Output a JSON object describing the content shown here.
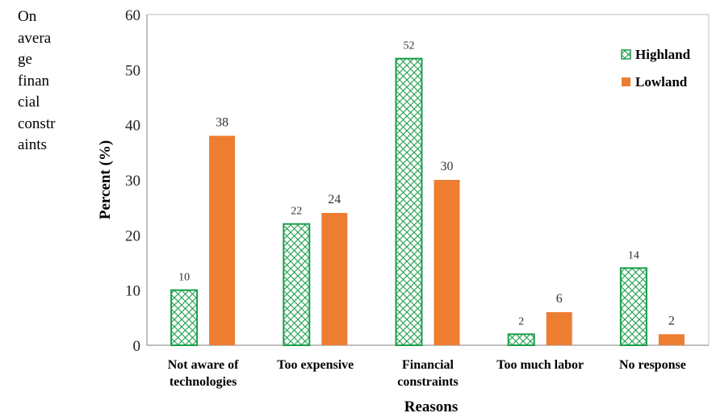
{
  "side_text": [
    "On",
    "avera",
    "ge",
    "finan",
    "cial",
    "constr",
    "aints"
  ],
  "chart_data": {
    "type": "bar",
    "title": "",
    "xlabel": "Reasons",
    "ylabel": "Percent (%)",
    "ylim": [
      0,
      60
    ],
    "yticks": [
      0,
      10,
      20,
      30,
      40,
      50,
      60
    ],
    "categories": [
      [
        "Not aware of",
        "technologies"
      ],
      [
        "Too expensive"
      ],
      [
        "Financial",
        "constraints"
      ],
      [
        "Too much labor"
      ],
      [
        "No response"
      ]
    ],
    "series": [
      {
        "name": "Highland",
        "values": [
          10,
          22,
          52,
          2,
          14
        ],
        "color": "#1a9e4a",
        "pattern": "crosshatch"
      },
      {
        "name": "Lowland",
        "values": [
          38,
          24,
          30,
          6,
          2
        ],
        "color": "#ed7d31",
        "pattern": "solid"
      }
    ],
    "legend_position": "top-right",
    "grid": false
  }
}
